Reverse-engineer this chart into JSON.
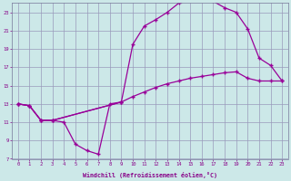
{
  "bg_color": "#cce8e8",
  "grid_color": "#9999bb",
  "line_color": "#990099",
  "xlabel": "Windchill (Refroidissement éolien,°C)",
  "xlabel_color": "#880088",
  "tick_color": "#880088",
  "xlim": [
    -0.5,
    23.5
  ],
  "ylim": [
    7,
    24
  ],
  "yticks": [
    7,
    9,
    11,
    13,
    15,
    17,
    19,
    21,
    23
  ],
  "xticks": [
    0,
    1,
    2,
    3,
    4,
    5,
    6,
    7,
    8,
    9,
    10,
    11,
    12,
    13,
    14,
    15,
    16,
    17,
    18,
    19,
    20,
    21,
    22,
    23
  ],
  "curve1_x": [
    0,
    1,
    2,
    3,
    4,
    5,
    6,
    7,
    8,
    9
  ],
  "curve1_y": [
    13,
    12.8,
    11.2,
    11.2,
    11.0,
    8.6,
    7.9,
    7.5,
    13.0,
    13.2
  ],
  "curve2_x": [
    0,
    1,
    2,
    3,
    9,
    10,
    11,
    12,
    13,
    14,
    15,
    16,
    17,
    18,
    19,
    20,
    21,
    22,
    23
  ],
  "curve2_y": [
    13,
    12.8,
    11.2,
    11.2,
    13.2,
    19.5,
    21.5,
    22.2,
    23.0,
    24.0,
    24.3,
    24.5,
    24.2,
    23.5,
    23.0,
    21.2,
    18.0,
    17.2,
    15.5
  ],
  "curve3_x": [
    0,
    1,
    2,
    3,
    9,
    10,
    11,
    12,
    13,
    14,
    15,
    16,
    17,
    18,
    19,
    20,
    21,
    22,
    23
  ],
  "curve3_y": [
    13,
    12.8,
    11.2,
    11.2,
    13.2,
    13.8,
    14.3,
    14.8,
    15.2,
    15.5,
    15.8,
    16.0,
    16.2,
    16.4,
    16.5,
    15.8,
    15.5,
    15.5,
    15.5
  ],
  "background_color": "#cce8e8"
}
